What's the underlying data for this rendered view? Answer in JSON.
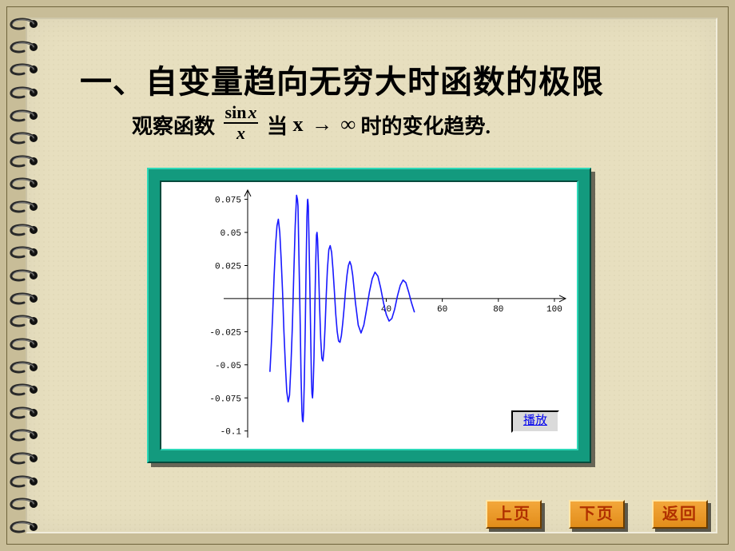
{
  "slide": {
    "title": "一、自变量趋向无穷大时函数的极限",
    "subtitle_pre": "观察函数",
    "fraction": {
      "numerator_fn": "sin",
      "numerator_var": "x",
      "denominator": "x"
    },
    "subtitle_mid1": "当",
    "subtitle_var": "x",
    "subtitle_arrow": "→",
    "subtitle_inf": "∞",
    "subtitle_post": "时的变化趋势.",
    "title_fontsize": 40,
    "subtitle_fontsize": 26
  },
  "colors": {
    "page_bg": "#c8bd98",
    "paper_bg": "#e7dfbf",
    "panel_teal": "#139a7e",
    "chart_bg": "#ffffff",
    "curve": "#1818ff",
    "axis": "#000000",
    "tick_label": "#000000",
    "nav_bg": "#e28d1a",
    "nav_text": "#b03000"
  },
  "chart": {
    "type": "line",
    "xlim": [
      -18,
      104
    ],
    "ylim": [
      -0.105,
      0.082
    ],
    "x_ticks": [
      40,
      60,
      80,
      100
    ],
    "y_ticks": [
      -0.1,
      -0.075,
      -0.05,
      -0.025,
      0.025,
      0.05,
      0.075
    ],
    "y_tick_labels": [
      "-0.1",
      "-0.075",
      "-0.05",
      "-0.025",
      "0.025",
      "0.05",
      "0.075"
    ],
    "axis_color": "#000000",
    "axis_width": 1,
    "curve_color": "#1818ff",
    "curve_width": 1.6,
    "tick_fontsize": 11,
    "series_points": [
      [
        -17.5,
        -0.055
      ],
      [
        -17,
        -0.035
      ],
      [
        -16.5,
        -0.01
      ],
      [
        -16,
        0.017
      ],
      [
        -15.5,
        0.04
      ],
      [
        -15,
        0.055
      ],
      [
        -14.5,
        0.06
      ],
      [
        -14,
        0.05
      ],
      [
        -13.5,
        0.03
      ],
      [
        -13,
        0.005
      ],
      [
        -12.5,
        -0.025
      ],
      [
        -12,
        -0.05
      ],
      [
        -11.5,
        -0.07
      ],
      [
        -11,
        -0.078
      ],
      [
        -10.5,
        -0.073
      ],
      [
        -10,
        -0.05
      ],
      [
        -9.5,
        -0.02
      ],
      [
        -9,
        0.018
      ],
      [
        -8.5,
        0.055
      ],
      [
        -8,
        0.078
      ],
      [
        -7.7,
        0.075
      ],
      [
        -7.5,
        0.07
      ],
      [
        -7.3,
        0.047
      ],
      [
        -7,
        0.015
      ],
      [
        -6.7,
        -0.02
      ],
      [
        -6.4,
        -0.058
      ],
      [
        -6.1,
        -0.085
      ],
      [
        -5.9,
        -0.092
      ],
      [
        -5.7,
        -0.093
      ],
      [
        -5.5,
        -0.085
      ],
      [
        -5.2,
        -0.06
      ],
      [
        -4.9,
        -0.022
      ],
      [
        -4.6,
        0.022
      ],
      [
        -4.3,
        0.062
      ],
      [
        -4.1,
        0.074
      ],
      [
        -4.0,
        0.075
      ],
      [
        -3.8,
        0.07
      ],
      [
        -3.6,
        0.05
      ],
      [
        -3.3,
        0.015
      ],
      [
        -3.0,
        -0.025
      ],
      [
        -2.7,
        -0.06
      ],
      [
        -2.5,
        -0.072
      ],
      [
        -2.3,
        -0.075
      ],
      [
        -2.1,
        -0.068
      ],
      [
        -1.8,
        -0.045
      ],
      [
        -1.5,
        -0.01
      ],
      [
        -1.2,
        0.025
      ],
      [
        -0.9,
        0.048
      ],
      [
        -0.7,
        0.05
      ],
      [
        -0.5,
        0.045
      ],
      [
        -0.2,
        0.025
      ],
      [
        0.2,
        -0.005
      ],
      [
        0.6,
        -0.03
      ],
      [
        1.0,
        -0.045
      ],
      [
        1.4,
        -0.047
      ],
      [
        1.8,
        -0.038
      ],
      [
        2.2,
        -0.02
      ],
      [
        2.6,
        0.003
      ],
      [
        3.0,
        0.022
      ],
      [
        3.5,
        0.037
      ],
      [
        4.0,
        0.04
      ],
      [
        4.5,
        0.035
      ],
      [
        5.0,
        0.022
      ],
      [
        5.5,
        0.005
      ],
      [
        6.0,
        -0.012
      ],
      [
        6.5,
        -0.025
      ],
      [
        7.0,
        -0.032
      ],
      [
        7.5,
        -0.033
      ],
      [
        8.0,
        -0.028
      ],
      [
        8.5,
        -0.018
      ],
      [
        9.0,
        -0.006
      ],
      [
        9.5,
        0.007
      ],
      [
        10.0,
        0.018
      ],
      [
        10.5,
        0.025
      ],
      [
        11.0,
        0.028
      ],
      [
        11.5,
        0.025
      ],
      [
        12.0,
        0.018
      ],
      [
        12.5,
        0.008
      ],
      [
        13.0,
        -0.003
      ],
      [
        14.0,
        -0.02
      ],
      [
        15.0,
        -0.026
      ],
      [
        16.0,
        -0.02
      ],
      [
        17.0,
        -0.008
      ],
      [
        18.0,
        0.005
      ],
      [
        19.0,
        0.015
      ],
      [
        20.0,
        0.02
      ],
      [
        21.0,
        0.017
      ],
      [
        22.0,
        0.008
      ],
      [
        23.0,
        -0.003
      ],
      [
        24.0,
        -0.012
      ],
      [
        25.0,
        -0.017
      ],
      [
        26.0,
        -0.015
      ],
      [
        27.0,
        -0.008
      ],
      [
        28.0,
        0.002
      ],
      [
        29.0,
        0.01
      ],
      [
        30.0,
        0.014
      ],
      [
        31.0,
        0.012
      ],
      [
        32.0,
        0.005
      ],
      [
        33.0,
        -0.003
      ],
      [
        34.0,
        -0.01
      ]
    ],
    "play_button_label": "播放"
  },
  "nav": {
    "prev": "上页",
    "next": "下页",
    "back": "返回"
  },
  "binding": {
    "ring_count": 23,
    "ring_color": "#2a2a2a",
    "hole_color": "#111"
  }
}
